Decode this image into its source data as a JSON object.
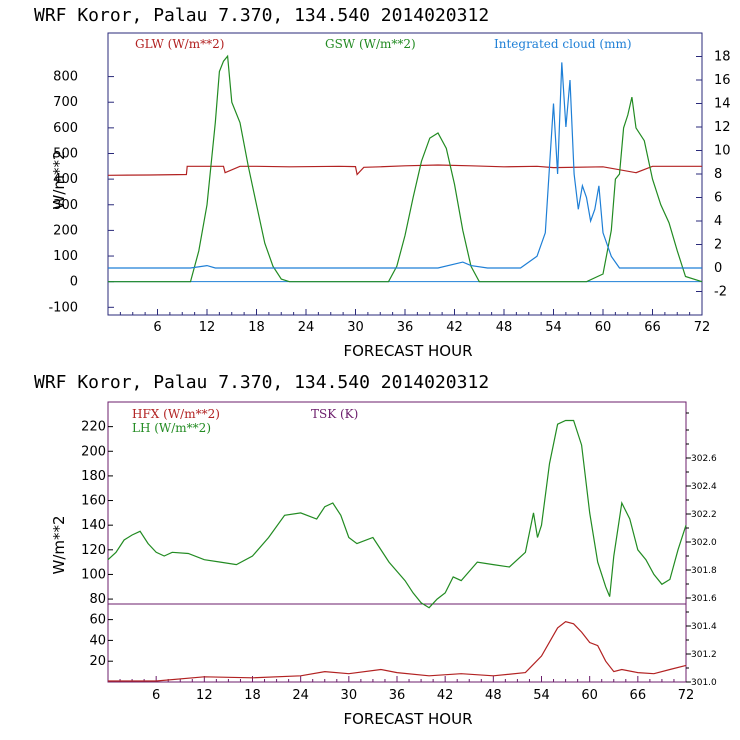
{
  "chart_data": [
    {
      "type": "line",
      "title": "WRF   Koror, Palau   7.370, 134.540  2014020312",
      "xlabel": "FORECAST HOUR",
      "ylabel": "W/m**2",
      "xlim": [
        0,
        72
      ],
      "ylim": [
        -130,
        970
      ],
      "y2lim": [
        -4,
        20
      ],
      "xticks": [
        6,
        12,
        18,
        24,
        30,
        36,
        42,
        48,
        54,
        60,
        66,
        72
      ],
      "yticks": [
        -100,
        0,
        100,
        200,
        300,
        400,
        500,
        600,
        700,
        800
      ],
      "y2ticks": [
        -2,
        0,
        2,
        4,
        6,
        8,
        10,
        12,
        14,
        16,
        18
      ],
      "colors": {
        "glw": "#b22222",
        "gsw": "#228b22",
        "cloud": "#1e7fd6"
      },
      "legend": [
        "GLW (W/m**2)",
        "GSW (W/m**2)",
        "Integrated cloud (mm)"
      ],
      "series": [
        {
          "name": "GLW (W/m**2)",
          "axis": "left",
          "x": [
            0,
            5,
            9.5,
            9.6,
            14,
            14.2,
            16,
            18,
            22,
            28,
            30,
            30.2,
            31,
            33,
            36,
            40,
            44,
            48,
            52,
            54,
            60,
            64,
            66,
            68,
            72
          ],
          "y": [
            415,
            416,
            418,
            450,
            450,
            425,
            450,
            450,
            448,
            450,
            449,
            418,
            446,
            448,
            452,
            455,
            452,
            448,
            450,
            445,
            448,
            425,
            450,
            450,
            450
          ]
        },
        {
          "name": "GSW (W/m**2)",
          "axis": "left",
          "x": [
            0,
            10,
            11,
            12,
            13,
            13.5,
            14,
            14.5,
            15,
            16,
            17,
            18,
            19,
            20,
            21,
            22,
            34,
            35,
            36,
            37,
            38,
            39,
            40,
            41,
            42,
            43,
            44,
            45,
            58,
            60,
            61,
            61.5,
            62,
            62.5,
            63,
            63.5,
            64,
            65,
            66,
            67,
            68,
            69,
            70,
            72
          ],
          "y": [
            0,
            0,
            120,
            300,
            620,
            820,
            860,
            880,
            700,
            620,
            450,
            300,
            150,
            60,
            10,
            0,
            0,
            60,
            180,
            330,
            470,
            560,
            580,
            520,
            380,
            200,
            60,
            0,
            0,
            30,
            200,
            400,
            420,
            600,
            650,
            720,
            600,
            550,
            400,
            300,
            230,
            120,
            20,
            0
          ]
        },
        {
          "name": "Integrated cloud (mm)",
          "axis": "right",
          "x": [
            0,
            10,
            12,
            13,
            14,
            20,
            30,
            40,
            43,
            44,
            46,
            50,
            52,
            53,
            54,
            54.5,
            55,
            55.5,
            56,
            56.5,
            57,
            57.5,
            58,
            58.5,
            59,
            59.5,
            60,
            61,
            62,
            64,
            72
          ],
          "y": [
            0,
            0,
            0.2,
            0,
            0,
            0,
            0,
            0,
            0.5,
            0.2,
            0,
            0,
            1,
            3,
            14,
            8,
            17.5,
            12,
            16,
            8,
            5,
            7,
            6,
            4,
            5,
            7,
            3,
            1,
            0,
            0,
            0
          ]
        }
      ]
    },
    {
      "type": "line",
      "title": "WRF   Koror, Palau   7.370, 134.540  2014020312",
      "xlabel": "FORECAST HOUR",
      "ylabel": "W/m**2",
      "xlim": [
        0,
        72
      ],
      "xticks": [
        6,
        12,
        18,
        24,
        30,
        36,
        42,
        48,
        54,
        60,
        66,
        72
      ],
      "upper_ylim": [
        76,
        240
      ],
      "upper_yticks": [
        80,
        100,
        120,
        140,
        160,
        180,
        200,
        220
      ],
      "lower_ylim": [
        0,
        75
      ],
      "lower_yticks": [
        20,
        40,
        60
      ],
      "y2ticks": [
        "301.0",
        "301.2",
        "301.4",
        "301.6",
        "301.8",
        "302.0",
        "302.2",
        "302.4",
        "302.6"
      ],
      "colors": {
        "hfx": "#b22222",
        "lh": "#228b22",
        "tsk": "#6b1d6b"
      },
      "legend": [
        "HFX (W/m**2)",
        "LH  (W/m**2)",
        "TSK (K)"
      ],
      "series": [
        {
          "name": "LH  (W/m**2)",
          "panel": "upper",
          "x": [
            0,
            1,
            2,
            3,
            4,
            5,
            6,
            7,
            8,
            10,
            12,
            14,
            16,
            18,
            20,
            22,
            24,
            26,
            27,
            28,
            29,
            30,
            31,
            33,
            35,
            37,
            38,
            39,
            40,
            41,
            42,
            43,
            44,
            46,
            48,
            50,
            52,
            53,
            53.5,
            54,
            55,
            56,
            57,
            58,
            59,
            60,
            61,
            62,
            62.5,
            63,
            64,
            65,
            66,
            67,
            68,
            69,
            70,
            71,
            72
          ],
          "y": [
            112,
            118,
            128,
            132,
            135,
            125,
            118,
            115,
            118,
            117,
            112,
            110,
            108,
            115,
            130,
            148,
            150,
            145,
            155,
            158,
            148,
            130,
            125,
            130,
            110,
            95,
            85,
            77,
            73,
            80,
            85,
            98,
            95,
            110,
            108,
            106,
            118,
            150,
            130,
            140,
            190,
            222,
            225,
            225,
            205,
            150,
            110,
            90,
            82,
            115,
            158,
            145,
            120,
            112,
            100,
            92,
            96,
            120,
            140
          ]
        },
        {
          "name": "HFX (W/m**2)",
          "panel": "lower",
          "x": [
            0,
            6,
            12,
            18,
            24,
            27,
            30,
            34,
            36,
            40,
            44,
            48,
            52,
            54,
            56,
            57,
            58,
            59,
            60,
            61,
            62,
            63,
            64,
            66,
            68,
            70,
            72
          ],
          "y": [
            1,
            1,
            5,
            4,
            6,
            10,
            8,
            12,
            9,
            6,
            8,
            6,
            9,
            25,
            52,
            58,
            56,
            48,
            38,
            35,
            20,
            10,
            12,
            9,
            8,
            12,
            16
          ]
        }
      ]
    }
  ]
}
